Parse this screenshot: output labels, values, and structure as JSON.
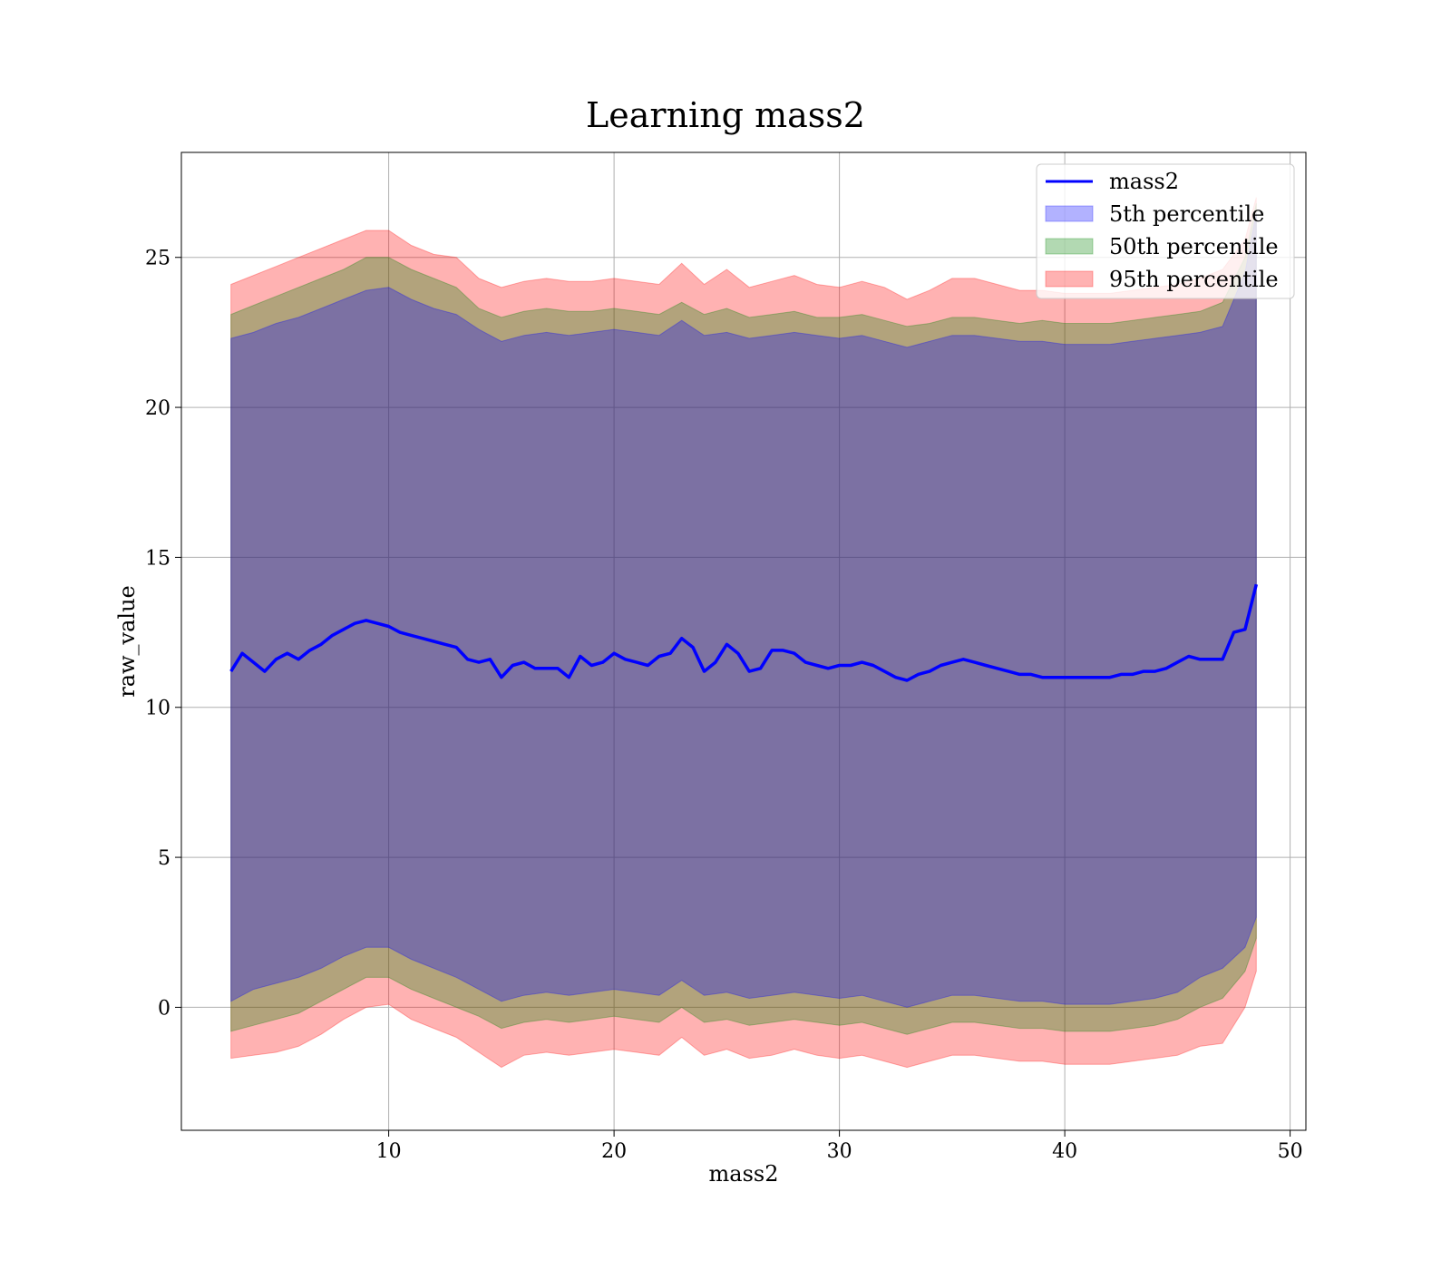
{
  "chart_data": {
    "type": "area",
    "title": "Learning mass2",
    "xlabel": "mass2",
    "ylabel": "raw_value",
    "xlim": [
      0.8,
      50.7
    ],
    "ylim": [
      -4.1,
      28.5
    ],
    "xticks": [
      10,
      20,
      30,
      40,
      50
    ],
    "yticks": [
      0,
      5,
      10,
      15,
      20,
      25
    ],
    "grid": true,
    "legend_position": "top-right",
    "colors": {
      "line": "#0000ff",
      "p5": "#0000ff",
      "p50": "#008000",
      "p95": "#ff0000"
    },
    "series": [
      {
        "name": "mass2",
        "kind": "line",
        "points": [
          [
            3.0,
            11.2
          ],
          [
            3.5,
            11.8
          ],
          [
            4.0,
            11.5
          ],
          [
            4.5,
            11.2
          ],
          [
            5.0,
            11.6
          ],
          [
            5.5,
            11.8
          ],
          [
            6.0,
            11.6
          ],
          [
            6.5,
            11.9
          ],
          [
            7.0,
            12.1
          ],
          [
            7.5,
            12.4
          ],
          [
            8.0,
            12.6
          ],
          [
            8.5,
            12.8
          ],
          [
            9.0,
            12.9
          ],
          [
            9.5,
            12.8
          ],
          [
            10.0,
            12.7
          ],
          [
            10.5,
            12.5
          ],
          [
            11.0,
            12.4
          ],
          [
            11.5,
            12.3
          ],
          [
            12.0,
            12.2
          ],
          [
            12.5,
            12.1
          ],
          [
            13.0,
            12.0
          ],
          [
            13.5,
            11.6
          ],
          [
            14.0,
            11.5
          ],
          [
            14.5,
            11.6
          ],
          [
            15.0,
            11.0
          ],
          [
            15.5,
            11.4
          ],
          [
            16.0,
            11.5
          ],
          [
            16.5,
            11.3
          ],
          [
            17.0,
            11.3
          ],
          [
            17.5,
            11.3
          ],
          [
            18.0,
            11.0
          ],
          [
            18.5,
            11.7
          ],
          [
            19.0,
            11.4
          ],
          [
            19.5,
            11.5
          ],
          [
            20.0,
            11.8
          ],
          [
            20.5,
            11.6
          ],
          [
            21.0,
            11.5
          ],
          [
            21.5,
            11.4
          ],
          [
            22.0,
            11.7
          ],
          [
            22.5,
            11.8
          ],
          [
            23.0,
            12.3
          ],
          [
            23.5,
            12.0
          ],
          [
            24.0,
            11.2
          ],
          [
            24.5,
            11.5
          ],
          [
            25.0,
            12.1
          ],
          [
            25.5,
            11.8
          ],
          [
            26.0,
            11.2
          ],
          [
            26.5,
            11.3
          ],
          [
            27.0,
            11.9
          ],
          [
            27.5,
            11.9
          ],
          [
            28.0,
            11.8
          ],
          [
            28.5,
            11.5
          ],
          [
            29.0,
            11.4
          ],
          [
            29.5,
            11.3
          ],
          [
            30.0,
            11.4
          ],
          [
            30.5,
            11.4
          ],
          [
            31.0,
            11.5
          ],
          [
            31.5,
            11.4
          ],
          [
            32.0,
            11.2
          ],
          [
            32.5,
            11.0
          ],
          [
            33.0,
            10.9
          ],
          [
            33.5,
            11.1
          ],
          [
            34.0,
            11.2
          ],
          [
            34.5,
            11.4
          ],
          [
            35.0,
            11.5
          ],
          [
            35.5,
            11.6
          ],
          [
            36.0,
            11.5
          ],
          [
            36.5,
            11.4
          ],
          [
            37.0,
            11.3
          ],
          [
            37.5,
            11.2
          ],
          [
            38.0,
            11.1
          ],
          [
            38.5,
            11.1
          ],
          [
            39.0,
            11.0
          ],
          [
            39.5,
            11.0
          ],
          [
            40.0,
            11.0
          ],
          [
            40.5,
            11.0
          ],
          [
            41.0,
            11.0
          ],
          [
            41.5,
            11.0
          ],
          [
            42.0,
            11.0
          ],
          [
            42.5,
            11.1
          ],
          [
            43.0,
            11.1
          ],
          [
            43.5,
            11.2
          ],
          [
            44.0,
            11.2
          ],
          [
            44.5,
            11.3
          ],
          [
            45.0,
            11.5
          ],
          [
            45.5,
            11.7
          ],
          [
            46.0,
            11.6
          ],
          [
            46.5,
            11.6
          ],
          [
            47.0,
            11.6
          ],
          [
            47.5,
            12.5
          ],
          [
            48.0,
            12.6
          ],
          [
            48.5,
            14.1
          ]
        ]
      },
      {
        "name": "5th percentile",
        "kind": "band",
        "x": [
          3.0,
          4.0,
          5.0,
          6.0,
          7.0,
          8.0,
          9.0,
          10.0,
          11.0,
          12.0,
          13.0,
          14.0,
          15.0,
          16.0,
          17.0,
          18.0,
          19.0,
          20.0,
          21.0,
          22.0,
          23.0,
          24.0,
          25.0,
          26.0,
          27.0,
          28.0,
          29.0,
          30.0,
          31.0,
          32.0,
          33.0,
          34.0,
          35.0,
          36.0,
          37.0,
          38.0,
          39.0,
          40.0,
          41.0,
          42.0,
          43.0,
          44.0,
          45.0,
          46.0,
          47.0,
          48.0,
          48.5
        ],
        "upper": [
          22.3,
          22.5,
          22.8,
          23.0,
          23.3,
          23.6,
          23.9,
          24.0,
          23.6,
          23.3,
          23.1,
          22.6,
          22.2,
          22.4,
          22.5,
          22.4,
          22.5,
          22.6,
          22.5,
          22.4,
          22.9,
          22.4,
          22.5,
          22.3,
          22.4,
          22.5,
          22.4,
          22.3,
          22.4,
          22.2,
          22.0,
          22.2,
          22.4,
          22.4,
          22.3,
          22.2,
          22.2,
          22.1,
          22.1,
          22.1,
          22.2,
          22.3,
          22.4,
          22.5,
          22.7,
          24.5,
          26.5
        ],
        "lower": [
          0.2,
          0.6,
          0.8,
          1.0,
          1.3,
          1.7,
          2.0,
          2.0,
          1.6,
          1.3,
          1.0,
          0.6,
          0.2,
          0.4,
          0.5,
          0.4,
          0.5,
          0.6,
          0.5,
          0.4,
          0.9,
          0.4,
          0.5,
          0.3,
          0.4,
          0.5,
          0.4,
          0.3,
          0.4,
          0.2,
          0.0,
          0.2,
          0.4,
          0.4,
          0.3,
          0.2,
          0.2,
          0.1,
          0.1,
          0.1,
          0.2,
          0.3,
          0.5,
          1.0,
          1.3,
          2.0,
          3.0
        ]
      },
      {
        "name": "50th percentile",
        "kind": "band",
        "x": [
          3.0,
          4.0,
          5.0,
          6.0,
          7.0,
          8.0,
          9.0,
          10.0,
          11.0,
          12.0,
          13.0,
          14.0,
          15.0,
          16.0,
          17.0,
          18.0,
          19.0,
          20.0,
          21.0,
          22.0,
          23.0,
          24.0,
          25.0,
          26.0,
          27.0,
          28.0,
          29.0,
          30.0,
          31.0,
          32.0,
          33.0,
          34.0,
          35.0,
          36.0,
          37.0,
          38.0,
          39.0,
          40.0,
          41.0,
          42.0,
          43.0,
          44.0,
          45.0,
          46.0,
          47.0,
          48.0,
          48.5
        ],
        "upper": [
          23.1,
          23.4,
          23.7,
          24.0,
          24.3,
          24.6,
          25.0,
          25.0,
          24.6,
          24.3,
          24.0,
          23.3,
          23.0,
          23.2,
          23.3,
          23.2,
          23.2,
          23.3,
          23.2,
          23.1,
          23.5,
          23.1,
          23.3,
          23.0,
          23.1,
          23.2,
          23.0,
          23.0,
          23.1,
          22.9,
          22.7,
          22.8,
          23.0,
          23.0,
          22.9,
          22.8,
          22.9,
          22.8,
          22.8,
          22.8,
          22.9,
          23.0,
          23.1,
          23.2,
          23.5,
          25.0,
          26.8
        ],
        "lower": [
          -0.8,
          -0.6,
          -0.4,
          -0.2,
          0.2,
          0.6,
          1.0,
          1.0,
          0.6,
          0.3,
          0.0,
          -0.3,
          -0.7,
          -0.5,
          -0.4,
          -0.5,
          -0.4,
          -0.3,
          -0.4,
          -0.5,
          0.0,
          -0.5,
          -0.4,
          -0.6,
          -0.5,
          -0.4,
          -0.5,
          -0.6,
          -0.5,
          -0.7,
          -0.9,
          -0.7,
          -0.5,
          -0.5,
          -0.6,
          -0.7,
          -0.7,
          -0.8,
          -0.8,
          -0.8,
          -0.7,
          -0.6,
          -0.4,
          0.0,
          0.3,
          1.2,
          2.3
        ]
      },
      {
        "name": "95th percentile",
        "kind": "band",
        "x": [
          3.0,
          4.0,
          5.0,
          6.0,
          7.0,
          8.0,
          9.0,
          10.0,
          11.0,
          12.0,
          13.0,
          14.0,
          15.0,
          16.0,
          17.0,
          18.0,
          19.0,
          20.0,
          21.0,
          22.0,
          23.0,
          24.0,
          25.0,
          26.0,
          27.0,
          28.0,
          29.0,
          30.0,
          31.0,
          32.0,
          33.0,
          34.0,
          35.0,
          36.0,
          37.0,
          38.0,
          39.0,
          40.0,
          41.0,
          42.0,
          43.0,
          44.0,
          45.0,
          46.0,
          47.0,
          48.0,
          48.5
        ],
        "upper": [
          24.1,
          24.4,
          24.7,
          25.0,
          25.3,
          25.6,
          25.9,
          25.9,
          25.4,
          25.1,
          25.0,
          24.3,
          24.0,
          24.2,
          24.3,
          24.2,
          24.2,
          24.3,
          24.2,
          24.1,
          24.8,
          24.1,
          24.6,
          24.0,
          24.2,
          24.4,
          24.1,
          24.0,
          24.2,
          24.0,
          23.6,
          23.9,
          24.3,
          24.3,
          24.1,
          23.9,
          23.9,
          23.8,
          23.8,
          23.8,
          23.9,
          24.0,
          24.1,
          24.3,
          24.6,
          25.6,
          27.0
        ],
        "lower": [
          -1.7,
          -1.6,
          -1.5,
          -1.3,
          -0.9,
          -0.4,
          0.0,
          0.1,
          -0.4,
          -0.7,
          -1.0,
          -1.5,
          -2.0,
          -1.6,
          -1.5,
          -1.6,
          -1.5,
          -1.4,
          -1.5,
          -1.6,
          -1.0,
          -1.6,
          -1.4,
          -1.7,
          -1.6,
          -1.4,
          -1.6,
          -1.7,
          -1.6,
          -1.8,
          -2.0,
          -1.8,
          -1.6,
          -1.6,
          -1.7,
          -1.8,
          -1.8,
          -1.9,
          -1.9,
          -1.9,
          -1.8,
          -1.7,
          -1.6,
          -1.3,
          -1.2,
          0.0,
          1.2
        ]
      }
    ]
  }
}
